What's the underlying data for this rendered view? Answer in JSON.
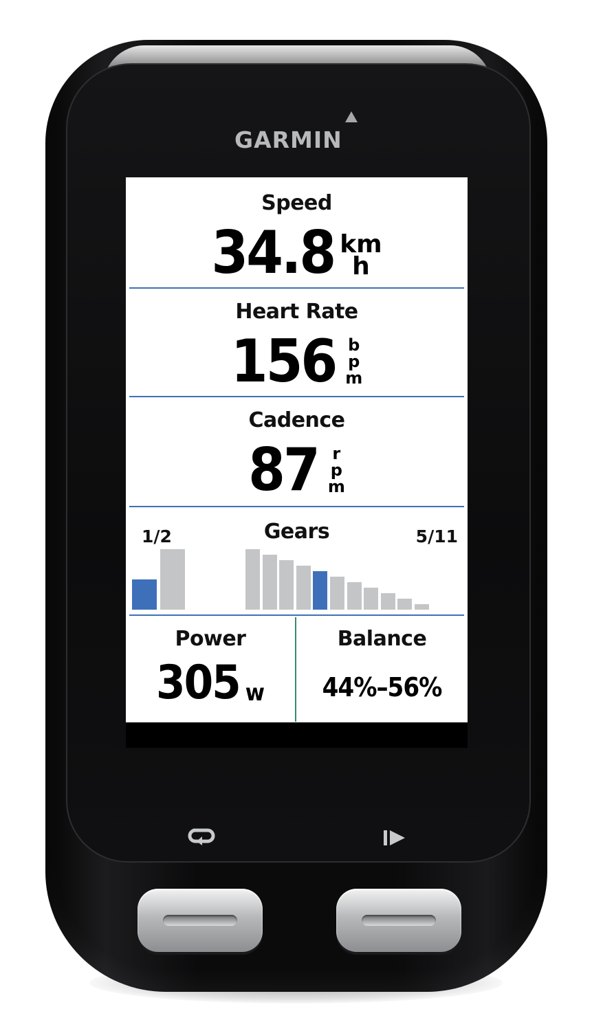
{
  "device": {
    "brand": "GARMIN"
  },
  "fields": {
    "speed": {
      "label": "Speed",
      "value": "34.8",
      "unit_top": "km",
      "unit_bottom": "h"
    },
    "heart_rate": {
      "label": "Heart Rate",
      "value": "156",
      "unit": [
        "b",
        "p",
        "m"
      ]
    },
    "cadence": {
      "label": "Cadence",
      "value": "87",
      "unit": [
        "r",
        "p",
        "m"
      ]
    },
    "gears": {
      "label": "Gears",
      "front": "1/2",
      "rear": "5/11",
      "front_selected": 1,
      "front_count": 2,
      "rear_selected": 5,
      "rear_count": 11
    },
    "power": {
      "label": "Power",
      "value": "305",
      "unit": "w"
    },
    "balance": {
      "label": "Balance",
      "value": "44%–56%"
    }
  },
  "colors": {
    "divider": "#3f70b5",
    "selected_gear": "#3e70b9",
    "unselected_gear": "#c4c5c7",
    "column_divider": "#3a8a6a"
  },
  "hardware": {
    "left_icon": "lap-icon",
    "right_icon": "start-stop-icon"
  }
}
